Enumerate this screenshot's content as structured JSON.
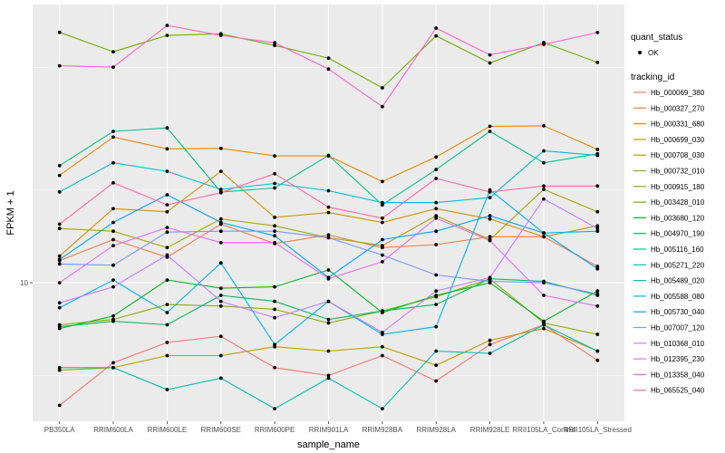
{
  "chart_data": {
    "type": "line",
    "title": "",
    "xlabel": "sample_name",
    "ylabel": "FPKM + 1",
    "yscale": "log",
    "ylim": [
      3.55,
      80
    ],
    "yticks": [
      10
    ],
    "ytick_labels": [
      "10"
    ],
    "grid": true,
    "categories": [
      "PB350LA",
      "RRIM600LA",
      "RRIM600LE",
      "RRIM600SE",
      "RRIM600PE",
      "RRIM901LA",
      "RRIM928BA",
      "RRIM928LA",
      "RRIM928LE",
      "RRII105LA_Control",
      "RRII105LA_Stressed"
    ],
    "category_labels": [
      "PB350LA",
      "RRIM600LA",
      "RRIM600LE",
      "RRIM600SE",
      "RRIM600PE",
      "RRIM901LA",
      "RRIM928BA",
      "RRIM928LA",
      "RRIM928LE",
      "RRII105LA_Control",
      "RRII105LA_Stressed"
    ],
    "legend_point": {
      "title": "quant_status",
      "label": "OK"
    },
    "legend_lines_title": "tracking_id",
    "series": [
      {
        "name": "Hb_000069_380",
        "color": "#F8766D",
        "values": [
          4.0,
          5.5,
          6.4,
          6.7,
          5.3,
          5.0,
          5.8,
          4.8,
          6.3,
          7.3,
          5.6
        ]
      },
      {
        "name": "Hb_000327_270",
        "color": "#EE8043",
        "values": [
          11.8,
          13.8,
          12.1,
          15.5,
          13.4,
          14.3,
          13.0,
          13.3,
          14.1,
          14.1,
          11.3
        ]
      },
      {
        "name": "Hb_000331_680",
        "color": "#E38900",
        "values": [
          22.3,
          29.7,
          27.2,
          27.3,
          25.8,
          25.8,
          21.3,
          25.6,
          32.2,
          32.3,
          27.1
        ]
      },
      {
        "name": "Hb_000699_030",
        "color": "#D39200",
        "values": [
          12.2,
          17.4,
          17.0,
          23.0,
          16.3,
          16.9,
          15.7,
          17.4,
          16.1,
          14.1,
          15.3
        ]
      },
      {
        "name": "Hb_000708_030",
        "color": "#C09B00",
        "values": [
          5.2,
          5.3,
          5.8,
          5.8,
          6.2,
          6.0,
          6.2,
          5.4,
          6.5,
          7.1,
          6.0
        ]
      },
      {
        "name": "Hb_000732_010",
        "color": "#A9A400",
        "values": [
          15.0,
          14.7,
          13.0,
          16.1,
          15.3,
          14.0,
          13.2,
          16.5,
          13.8,
          20.1,
          17.0
        ]
      },
      {
        "name": "Hb_000915_180",
        "color": "#8FAA00",
        "values": [
          7.3,
          7.6,
          8.5,
          8.4,
          8.2,
          7.4,
          8.1,
          9.0,
          10.3,
          7.4,
          6.8
        ]
      },
      {
        "name": "Hb_003428_010",
        "color": "#6BB100",
        "values": [
          65.0,
          56.2,
          63.5,
          64.3,
          58.9,
          53.6,
          42.9,
          63.3,
          51.7,
          60.2,
          51.9
        ]
      },
      {
        "name": "Hb_003680_120",
        "color": "#00B81F",
        "values": [
          7.1,
          7.8,
          10.2,
          9.6,
          9.7,
          11.0,
          8.0,
          9.1,
          10.0,
          7.5,
          9.4
        ]
      },
      {
        "name": "Hb_004970_190",
        "color": "#00BD5C",
        "values": [
          7.2,
          7.5,
          7.3,
          9.1,
          8.7,
          7.6,
          8.1,
          8.5,
          10.3,
          10.1,
          9.1
        ]
      },
      {
        "name": "Hb_005116_160",
        "color": "#00C08B",
        "values": [
          24.0,
          31.0,
          31.8,
          19.7,
          20.3,
          25.9,
          17.9,
          23.3,
          31.0,
          24.5,
          26.2
        ]
      },
      {
        "name": "Hb_005271_220",
        "color": "#00BFB3",
        "values": [
          5.3,
          5.3,
          4.5,
          4.9,
          3.9,
          4.9,
          3.9,
          6.0,
          5.9,
          7.3,
          6.0
        ]
      },
      {
        "name": "Hb_005489_020",
        "color": "#00BCD6",
        "values": [
          19.7,
          24.5,
          23.0,
          20.1,
          21.0,
          19.9,
          18.2,
          18.2,
          18.9,
          26.8,
          25.9
        ]
      },
      {
        "name": "Hb_005588_080",
        "color": "#00B5EE",
        "values": [
          8.3,
          10.2,
          8.0,
          11.6,
          6.3,
          8.7,
          6.8,
          7.2,
          20.0,
          14.5,
          14.7
        ]
      },
      {
        "name": "Hb_005730_040",
        "color": "#00A5FF",
        "values": [
          11.9,
          15.7,
          19.3,
          15.7,
          14.2,
          10.4,
          13.8,
          14.7,
          16.5,
          14.5,
          11.1
        ]
      },
      {
        "name": "Hb_007007_120",
        "color": "#7997FF",
        "values": [
          11.5,
          11.4,
          14.6,
          14.7,
          14.7,
          14.0,
          12.3,
          10.6,
          10.1,
          10.0,
          9.2
        ]
      },
      {
        "name": "Hb_010368_010",
        "color": "#C77CFF",
        "values": [
          8.6,
          9.7,
          12.3,
          8.7,
          7.7,
          8.7,
          6.9,
          9.4,
          10.4,
          18.7,
          15.0
        ]
      },
      {
        "name": "Hb_012395_230",
        "color": "#E76BF3",
        "values": [
          10.0,
          13.2,
          15.1,
          13.5,
          13.5,
          10.3,
          11.7,
          16.2,
          13.7,
          9.1,
          8.4
        ]
      },
      {
        "name": "Hb_013358_040",
        "color": "#FD61D1",
        "values": [
          50.6,
          50.1,
          68.4,
          63.5,
          60.1,
          49.4,
          37.3,
          67.1,
          54.9,
          59.4,
          64.9
        ]
      },
      {
        "name": "Hb_065525_040",
        "color": "#FF67A4",
        "values": [
          15.5,
          21.1,
          17.9,
          19.6,
          22.6,
          17.6,
          16.2,
          21.8,
          19.7,
          20.6,
          20.6
        ]
      }
    ]
  }
}
